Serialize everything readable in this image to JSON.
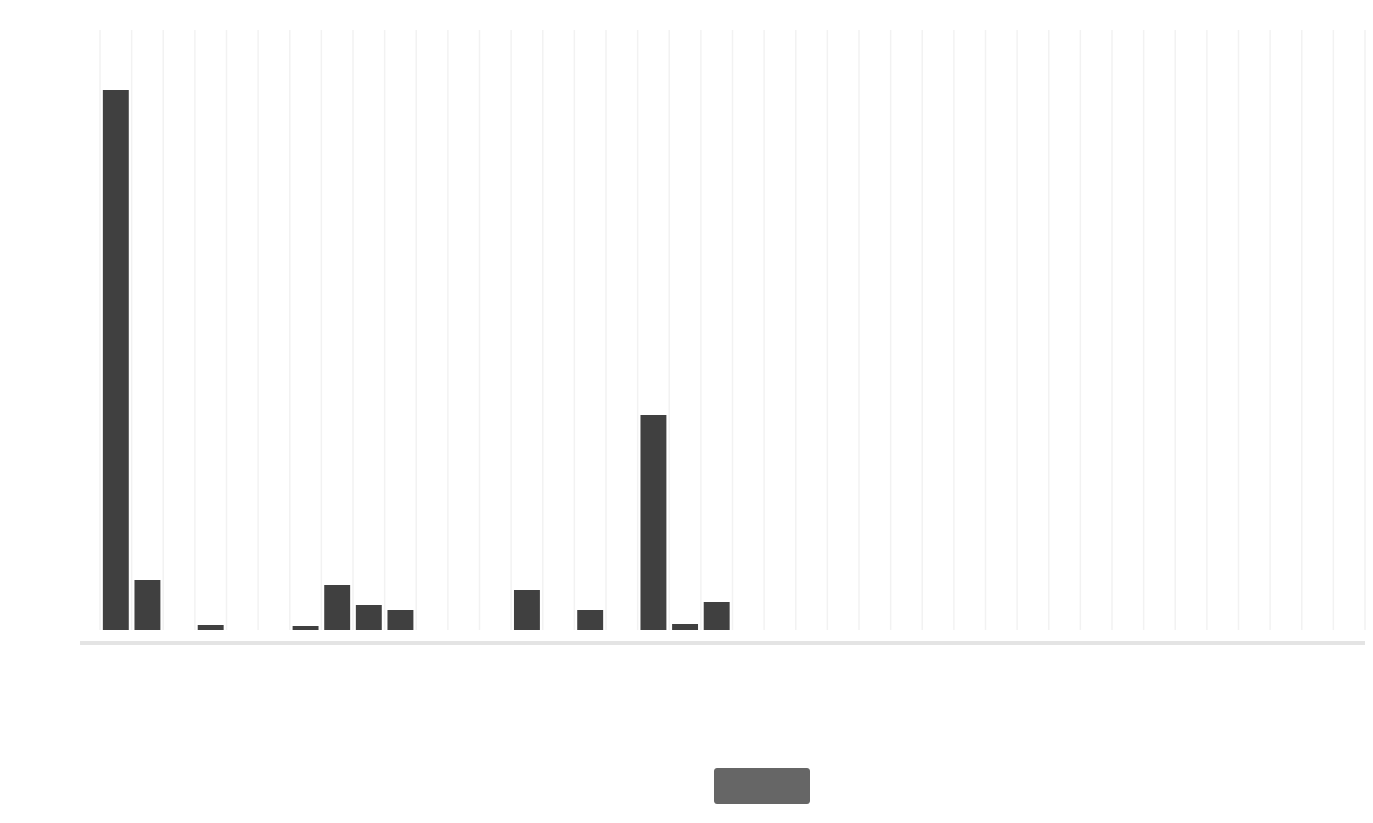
{
  "chart_data": {
    "type": "bar",
    "title": "",
    "xlabel": "",
    "ylabel": "",
    "categories": [
      "",
      "",
      "",
      "",
      "",
      "",
      "",
      "",
      "",
      "",
      "",
      "",
      "",
      "",
      "",
      "",
      "",
      "",
      "",
      "",
      "",
      "",
      "",
      "",
      "",
      "",
      "",
      "",
      "",
      "",
      "",
      "",
      "",
      "",
      "",
      "",
      "",
      "",
      "",
      ""
    ],
    "values": [
      54,
      5,
      0,
      0.5,
      0,
      0,
      0.4,
      4.5,
      2.5,
      2,
      0,
      0,
      0,
      4,
      0,
      2,
      0,
      21.5,
      0.6,
      2.8,
      0,
      0,
      0,
      0,
      0,
      0,
      0,
      0,
      0,
      0,
      0,
      0,
      0,
      0,
      0,
      0,
      0,
      0,
      0,
      0
    ],
    "ylim": [
      0,
      60
    ],
    "yticks": [
      "",
      "",
      "",
      "",
      "",
      "",
      ""
    ],
    "grid": true,
    "bar_color": "#404040",
    "grid_color": "#f2f2f2",
    "legend_placement": "bottom-center",
    "legend": {
      "label": "",
      "color": "#666666"
    }
  }
}
